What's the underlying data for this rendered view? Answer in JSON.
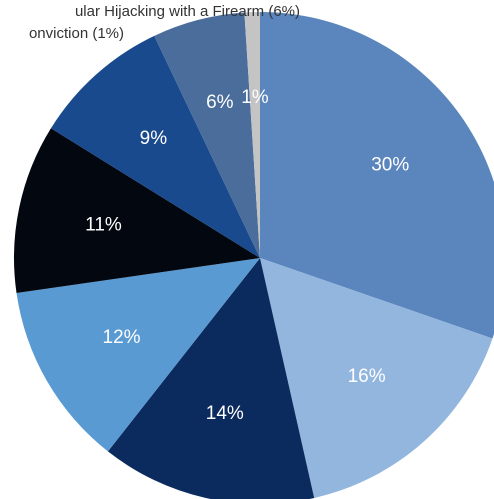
{
  "chart_data": {
    "type": "pie",
    "annotations": [
      "ular Hijacking with a Firearm (6%)",
      "onviction (1%)"
    ],
    "values": [
      30,
      16,
      14,
      12,
      11,
      9,
      6,
      1
    ],
    "value_labels": [
      "30%",
      "16%",
      "14%",
      "12%",
      "11%",
      "9%",
      "6%",
      "1%"
    ],
    "colors": [
      "#5b85bd",
      "#92b6de",
      "#0b2a5e",
      "#5a9ad3",
      "#03070f",
      "#1a4a8e",
      "#4a6d9b",
      "#c4c4c4"
    ]
  }
}
